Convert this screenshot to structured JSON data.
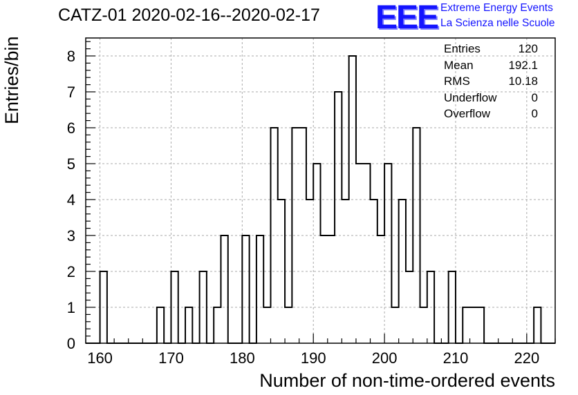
{
  "header": {
    "title": "CATZ-01 2020-02-16--2020-02-17",
    "logo_text": "EEE",
    "logo_line1": "Extreme Energy Events",
    "logo_line2": "La Scienza nelle Scuole"
  },
  "stats": [
    {
      "label": "Entries",
      "value": "120"
    },
    {
      "label": "Mean",
      "value": "192.1"
    },
    {
      "label": "RMS",
      "value": "10.18"
    },
    {
      "label": "Underflow",
      "value": "0"
    },
    {
      "label": "Overflow",
      "value": "0"
    }
  ],
  "colors": {
    "logo": "#1414ff",
    "grid": "#aaaaaa",
    "line": "#000000"
  },
  "chart_data": {
    "type": "bar",
    "histogram": true,
    "title": "CATZ-01 2020-02-16--2020-02-17",
    "xlabel": "Number of non-time-ordered events",
    "ylabel": "Entries/bin",
    "xlim": [
      158,
      224
    ],
    "ylim": [
      0,
      8.5
    ],
    "bin_width": 1,
    "grid": true,
    "xticks": [
      160,
      170,
      180,
      190,
      200,
      210,
      220
    ],
    "yticks": [
      0,
      1,
      2,
      3,
      4,
      5,
      6,
      7,
      8
    ],
    "bins": [
      {
        "x": 160,
        "count": 2
      },
      {
        "x": 168,
        "count": 1
      },
      {
        "x": 170,
        "count": 2
      },
      {
        "x": 172,
        "count": 1
      },
      {
        "x": 174,
        "count": 2
      },
      {
        "x": 176,
        "count": 1
      },
      {
        "x": 177,
        "count": 3
      },
      {
        "x": 180,
        "count": 3
      },
      {
        "x": 181,
        "count": 0
      },
      {
        "x": 182,
        "count": 3
      },
      {
        "x": 183,
        "count": 1
      },
      {
        "x": 184,
        "count": 6
      },
      {
        "x": 185,
        "count": 4
      },
      {
        "x": 186,
        "count": 1
      },
      {
        "x": 187,
        "count": 6
      },
      {
        "x": 188,
        "count": 6
      },
      {
        "x": 189,
        "count": 4
      },
      {
        "x": 190,
        "count": 5
      },
      {
        "x": 191,
        "count": 3
      },
      {
        "x": 192,
        "count": 3
      },
      {
        "x": 193,
        "count": 7
      },
      {
        "x": 194,
        "count": 4
      },
      {
        "x": 195,
        "count": 8
      },
      {
        "x": 196,
        "count": 5
      },
      {
        "x": 197,
        "count": 5
      },
      {
        "x": 198,
        "count": 4
      },
      {
        "x": 199,
        "count": 3
      },
      {
        "x": 200,
        "count": 5
      },
      {
        "x": 201,
        "count": 1
      },
      {
        "x": 202,
        "count": 4
      },
      {
        "x": 203,
        "count": 2
      },
      {
        "x": 204,
        "count": 6
      },
      {
        "x": 205,
        "count": 1
      },
      {
        "x": 206,
        "count": 2
      },
      {
        "x": 209,
        "count": 2
      },
      {
        "x": 211,
        "count": 1
      },
      {
        "x": 212,
        "count": 1
      },
      {
        "x": 213,
        "count": 1
      },
      {
        "x": 221,
        "count": 1
      }
    ]
  }
}
